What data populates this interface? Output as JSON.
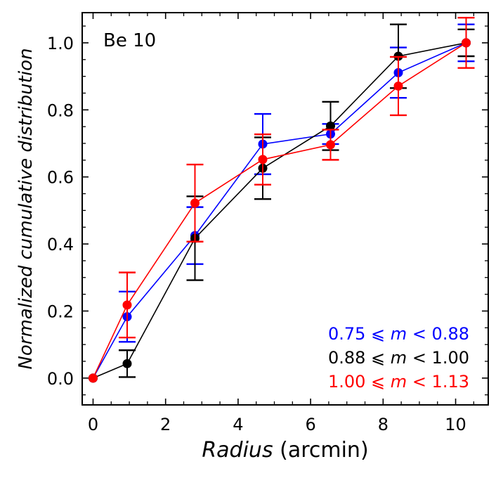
{
  "chart_data": {
    "type": "line",
    "title": "",
    "annotation": "Be 10",
    "xlabel": {
      "italic": "Radius",
      "plain": " (arcmin)"
    },
    "ylabel": "Normalized cumulative distribution",
    "xlim": [
      -0.3,
      10.9
    ],
    "ylim": [
      -0.08,
      1.09
    ],
    "xticks": [
      0,
      2,
      4,
      6,
      8,
      10
    ],
    "xtick_labels": [
      "0",
      "2",
      "4",
      "6",
      "8",
      "10"
    ],
    "yticks": [
      0.0,
      0.2,
      0.4,
      0.6,
      0.8,
      1.0
    ],
    "ytick_labels": [
      "0.0",
      "0.2",
      "0.4",
      "0.6",
      "0.8",
      "1.0"
    ],
    "x_minor_step": 0.5,
    "y_minor_step": 0.05,
    "legend_position": "bottom-right",
    "series": [
      {
        "name": "0.75 ⩽ m < 0.88",
        "label_lo": "0.75 ⩽ ",
        "label_var": "m",
        "label_hi": " < 0.88",
        "color": "#0000ff",
        "x": [
          0,
          0.94,
          2.81,
          4.68,
          6.55,
          8.42,
          10.29
        ],
        "y": [
          0.0,
          0.183,
          0.425,
          0.698,
          0.728,
          0.911,
          1.0
        ],
        "err": [
          0,
          0.075,
          0.085,
          0.09,
          0.03,
          0.075,
          0.055
        ]
      },
      {
        "name": "0.88 ⩽ m < 1.00",
        "label_lo": "0.88 ⩽ ",
        "label_var": "m",
        "label_hi": " < 1.00",
        "color": "#000000",
        "x": [
          0,
          0.94,
          2.81,
          4.68,
          6.55,
          8.42,
          10.29
        ],
        "y": [
          0.0,
          0.043,
          0.417,
          0.626,
          0.752,
          0.96,
          1.0
        ],
        "err": [
          0,
          0.04,
          0.125,
          0.092,
          0.072,
          0.095,
          0.04
        ]
      },
      {
        "name": "1.00 ⩽ m < 1.13",
        "label_lo": "1.00 ⩽ ",
        "label_var": "m",
        "label_hi": " < 1.13",
        "color": "#ff0000",
        "x": [
          0,
          0.94,
          2.81,
          4.68,
          6.55,
          8.42,
          10.29
        ],
        "y": [
          0.0,
          0.218,
          0.522,
          0.652,
          0.696,
          0.871,
          1.0
        ],
        "err": [
          0,
          0.097,
          0.115,
          0.075,
          0.045,
          0.087,
          0.075
        ]
      }
    ]
  }
}
